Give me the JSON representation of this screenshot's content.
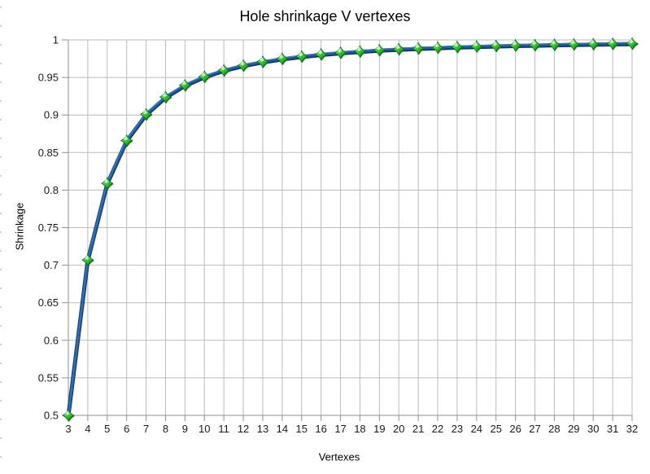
{
  "chart_data": {
    "type": "line",
    "title": "Hole shrinkage V vertexes",
    "xlabel": "Vertexes",
    "ylabel": "Shrinkage",
    "x": [
      3,
      4,
      5,
      6,
      7,
      8,
      9,
      10,
      11,
      12,
      13,
      14,
      15,
      16,
      17,
      18,
      19,
      20,
      21,
      22,
      23,
      24,
      25,
      26,
      27,
      28,
      29,
      30,
      31,
      32
    ],
    "y": [
      0.5,
      0.7071,
      0.809,
      0.866,
      0.901,
      0.9239,
      0.9397,
      0.9511,
      0.9595,
      0.9659,
      0.9709,
      0.9749,
      0.9781,
      0.9808,
      0.983,
      0.9848,
      0.9864,
      0.9877,
      0.9888,
      0.9898,
      0.9907,
      0.9914,
      0.9921,
      0.9927,
      0.9932,
      0.9937,
      0.9941,
      0.9945,
      0.9949,
      0.9952
    ],
    "xlim": [
      3,
      32
    ],
    "ylim": [
      0.5,
      1.0
    ],
    "x_ticks": [
      3,
      4,
      5,
      6,
      7,
      8,
      9,
      10,
      11,
      12,
      13,
      14,
      15,
      16,
      17,
      18,
      19,
      20,
      21,
      22,
      23,
      24,
      25,
      26,
      27,
      28,
      29,
      30,
      31,
      32
    ],
    "x_tick_labels": [
      "3",
      "4",
      "5",
      "6",
      "7",
      "8",
      "9",
      "10",
      "11",
      "12",
      "13",
      "14",
      "15",
      "16",
      "17",
      "18",
      "19",
      "20",
      "21",
      "22",
      "23",
      "24",
      "25",
      "26",
      "27",
      "28",
      "29",
      "30",
      "31",
      "32"
    ],
    "y_ticks": [
      0.5,
      0.55,
      0.6,
      0.65,
      0.7,
      0.75,
      0.8,
      0.85,
      0.9,
      0.95,
      1.0
    ],
    "y_tick_labels": [
      "0.5",
      "0.55",
      "0.6",
      "0.65",
      "0.7",
      "0.75",
      "0.8",
      "0.85",
      "0.9",
      "0.95",
      "1"
    ],
    "grid": "on",
    "legend": "none",
    "marker": "3d-diamond",
    "colors": {
      "background": "#ffffff",
      "grid": "#bcbcbc",
      "axis": "#8f8f8f",
      "text": "#1a1a1a",
      "line": "#1c5a9b",
      "line_dark": "#0d3360",
      "line_light": "#4580c0",
      "marker_light": "#b8f4b8",
      "marker_mid": "#3bc93b",
      "marker_dark": "#0e8013",
      "marker_outline": "#0a5c10",
      "marker_highlight": "#dcfbdc"
    }
  }
}
